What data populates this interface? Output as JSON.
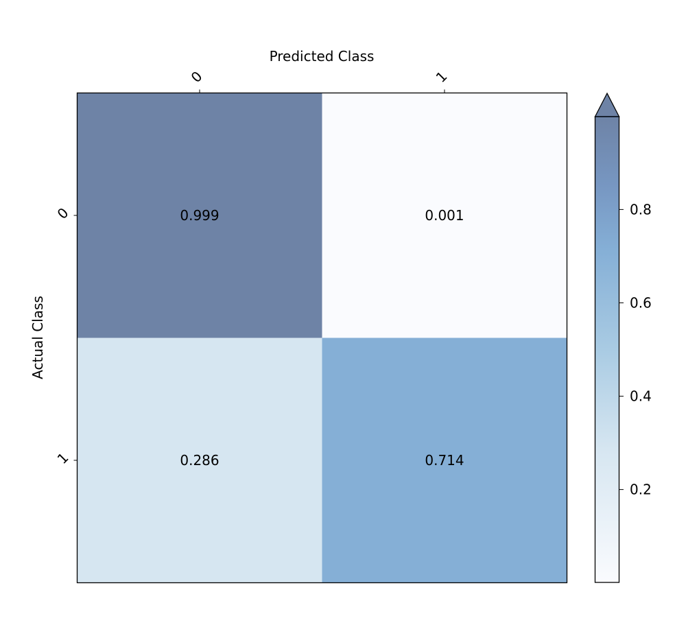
{
  "chart_data": {
    "type": "heatmap",
    "title": "",
    "xlabel": "Predicted Class",
    "ylabel": "Actual Class",
    "x_categories": [
      "0",
      "1"
    ],
    "y_categories": [
      "0",
      "1"
    ],
    "values": [
      [
        0.999,
        0.001
      ],
      [
        0.286,
        0.714
      ]
    ],
    "value_labels": [
      [
        "0.999",
        "0.001"
      ],
      [
        "0.286",
        "0.714"
      ]
    ],
    "xaxis_position": "top",
    "colormap": "Blues (semi-transparent)",
    "colorbar": {
      "range": [
        0.001,
        0.999
      ],
      "ticks": [
        0.2,
        0.4,
        0.6,
        0.8
      ],
      "tick_labels": [
        "0.2",
        "0.4",
        "0.6",
        "0.8"
      ],
      "extend": "max",
      "position": "right"
    },
    "color_stops": [
      {
        "v": 0.0,
        "c": "#fafbfe"
      },
      {
        "v": 0.286,
        "c": "#d6e6f1"
      },
      {
        "v": 0.5,
        "c": "#a9cbe3"
      },
      {
        "v": 0.714,
        "c": "#85afd6"
      },
      {
        "v": 0.85,
        "c": "#7797c2"
      },
      {
        "v": 1.0,
        "c": "#6e83a6"
      }
    ],
    "grid": false
  }
}
